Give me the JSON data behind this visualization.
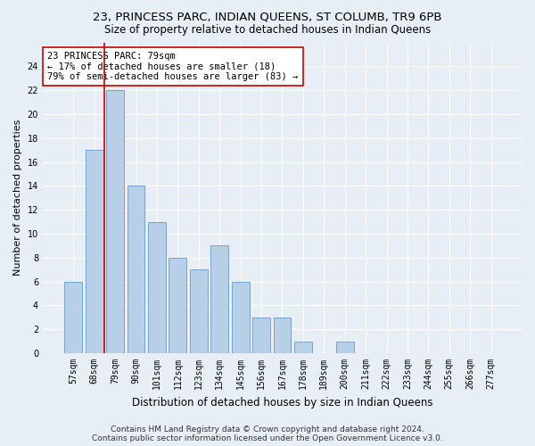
{
  "title": "23, PRINCESS PARC, INDIAN QUEENS, ST COLUMB, TR9 6PB",
  "subtitle": "Size of property relative to detached houses in Indian Queens",
  "xlabel": "Distribution of detached houses by size in Indian Queens",
  "ylabel": "Number of detached properties",
  "categories": [
    "57sqm",
    "68sqm",
    "79sqm",
    "90sqm",
    "101sqm",
    "112sqm",
    "123sqm",
    "134sqm",
    "145sqm",
    "156sqm",
    "167sqm",
    "178sqm",
    "189sqm",
    "200sqm",
    "211sqm",
    "222sqm",
    "233sqm",
    "244sqm",
    "255sqm",
    "266sqm",
    "277sqm"
  ],
  "values": [
    6,
    17,
    22,
    14,
    11,
    8,
    7,
    9,
    6,
    3,
    3,
    1,
    0,
    1,
    0,
    0,
    0,
    0,
    0,
    0,
    0
  ],
  "bar_color": "#b8cfe8",
  "bar_edge_color": "#6699cc",
  "highlight_bar_index": 2,
  "highlight_line_color": "#cc0000",
  "annotation_text": "23 PRINCESS PARC: 79sqm\n← 17% of detached houses are smaller (18)\n79% of semi-detached houses are larger (83) →",
  "annotation_box_color": "#ffffff",
  "annotation_box_edge_color": "#cc0000",
  "bg_color": "#e8eef5",
  "plot_bg_color": "#e8eef5",
  "grid_color": "#ffffff",
  "ylim": [
    0,
    26
  ],
  "yticks": [
    0,
    2,
    4,
    6,
    8,
    10,
    12,
    14,
    16,
    18,
    20,
    22,
    24
  ],
  "footer_text": "Contains HM Land Registry data © Crown copyright and database right 2024.\nContains public sector information licensed under the Open Government Licence v3.0.",
  "title_fontsize": 9.5,
  "subtitle_fontsize": 8.5,
  "xlabel_fontsize": 8.5,
  "ylabel_fontsize": 8,
  "tick_fontsize": 7,
  "annotation_fontsize": 7.5,
  "footer_fontsize": 6.5
}
